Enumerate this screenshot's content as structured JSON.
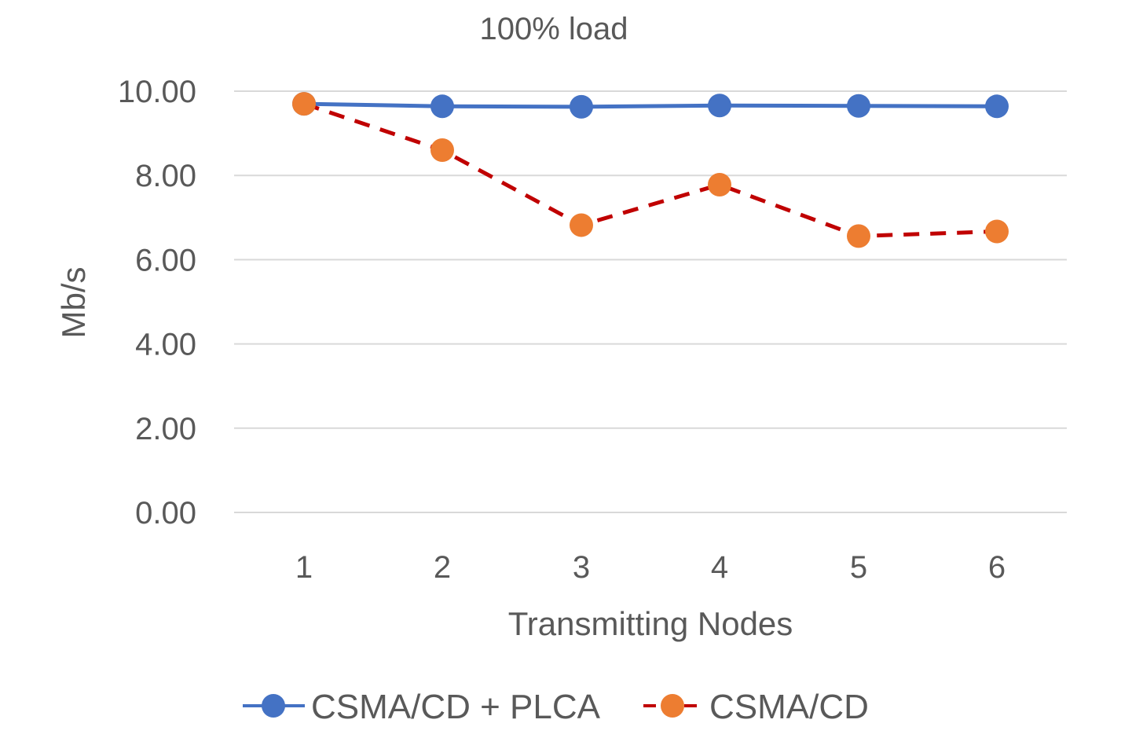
{
  "chart_data": {
    "type": "line",
    "title": "100% load",
    "xlabel": "Transmitting Nodes",
    "ylabel": "Mb/s",
    "categories": [
      "1",
      "2",
      "3",
      "4",
      "5",
      "6"
    ],
    "ylim": [
      0,
      10
    ],
    "yticks": [
      "0.00",
      "2.00",
      "4.00",
      "6.00",
      "8.00",
      "10.00"
    ],
    "grid": true,
    "legend_position": "bottom",
    "series": [
      {
        "name": "CSMA/CD + PLCA",
        "values": [
          9.7,
          9.64,
          9.63,
          9.66,
          9.65,
          9.64
        ],
        "color": "#4472c4",
        "line_style": "solid"
      },
      {
        "name": "CSMA/CD",
        "values": [
          9.7,
          8.6,
          6.82,
          7.78,
          6.56,
          6.67
        ],
        "color": "#ed7d31",
        "line_color": "#c00000",
        "line_style": "dashed"
      }
    ]
  }
}
